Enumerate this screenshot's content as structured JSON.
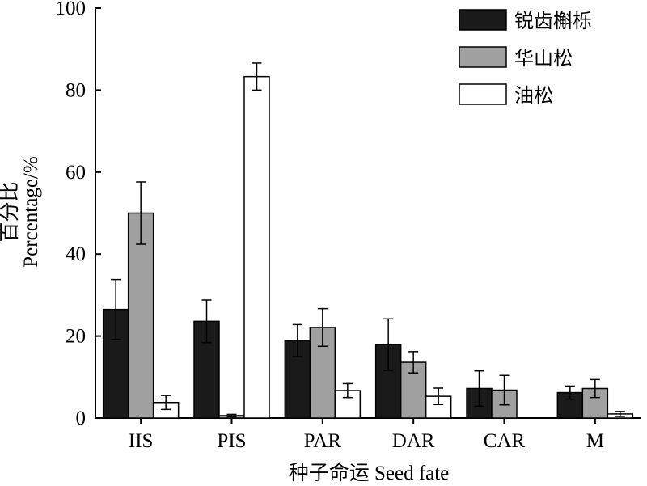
{
  "chart_data": {
    "type": "bar",
    "categories": [
      "IIS",
      "PIS",
      "PAR",
      "DAR",
      "CAR",
      "M"
    ],
    "series": [
      {
        "name": "锐齿槲栎",
        "color": "#1a1a1a",
        "values": [
          26.5,
          23.6,
          18.9,
          17.9,
          7.2,
          6.2
        ],
        "errors": [
          7.3,
          5.2,
          3.9,
          6.3,
          4.3,
          1.6
        ]
      },
      {
        "name": "华山松",
        "color": "#a0a0a0",
        "values": [
          50.0,
          0.6,
          22.1,
          13.6,
          6.8,
          7.2
        ],
        "errors": [
          7.6,
          0.3,
          4.6,
          2.6,
          3.6,
          2.2
        ]
      },
      {
        "name": "油松",
        "color": "#ffffff",
        "values": [
          3.8,
          83.3,
          6.7,
          5.3,
          null,
          1.0
        ],
        "errors": [
          1.7,
          3.3,
          1.7,
          2.0,
          null,
          0.6
        ]
      }
    ],
    "ylim": [
      0,
      100
    ],
    "yticks": [
      0,
      20,
      40,
      60,
      80,
      100
    ],
    "ylabel_cn": "百分比",
    "ylabel": "Percentage/%",
    "xlabel": "种子命运 Seed fate",
    "legend_position": "top-right",
    "grid": false
  }
}
